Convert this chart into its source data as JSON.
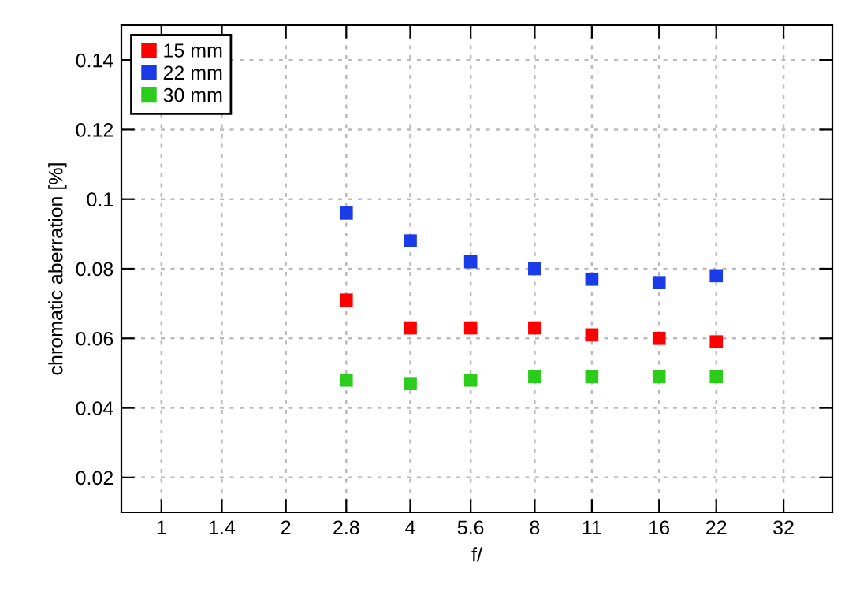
{
  "chart_data": {
    "type": "scatter",
    "xlabel": "f/",
    "ylabel": "chromatic aberration [%]",
    "x": [
      2.8,
      4,
      5.6,
      8,
      11,
      16,
      22
    ],
    "series": [
      {
        "name": "15 mm",
        "color": "#ff0000",
        "values": [
          0.071,
          0.063,
          0.063,
          0.063,
          0.061,
          0.06,
          0.059
        ]
      },
      {
        "name": "22 mm",
        "color": "#1a3be8",
        "values": [
          0.096,
          0.088,
          0.082,
          0.08,
          0.077,
          0.076,
          0.078
        ]
      },
      {
        "name": "30 mm",
        "color": "#2ccc1c",
        "values": [
          0.048,
          0.047,
          0.048,
          0.049,
          0.049,
          0.049,
          0.049
        ]
      }
    ],
    "log": "x",
    "xlim": [
      0.8,
      42
    ],
    "xticks": [
      1,
      1.4,
      2,
      2.8,
      4,
      5.6,
      8,
      11,
      16,
      22,
      32
    ],
    "ylim": [
      0.01,
      0.15
    ],
    "yticks": [
      0.02,
      0.04,
      0.06,
      0.08,
      0.1,
      0.12,
      0.14
    ],
    "grid": true,
    "legend": "top left",
    "marker": "square"
  }
}
